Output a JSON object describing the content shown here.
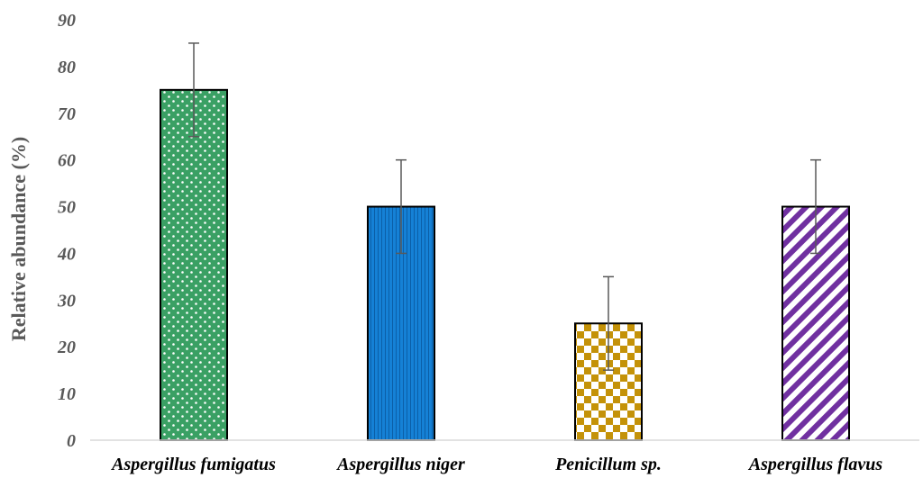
{
  "chart_data": {
    "type": "bar",
    "title": "",
    "xlabel": "",
    "ylabel": "Relative abundance (%)",
    "ylim": [
      0,
      90
    ],
    "yticks": [
      0,
      10,
      20,
      30,
      40,
      50,
      60,
      70,
      80,
      90
    ],
    "grid": false,
    "categories": [
      "Aspergillus fumigatus",
      "Aspergillus niger",
      "Penicillum sp.",
      "Aspergillus flavus"
    ],
    "values": [
      75,
      50,
      25,
      50
    ],
    "error": [
      10,
      10,
      10,
      10
    ],
    "bar_colors": [
      "#3aa064",
      "#1581d6",
      "#c49208",
      "#7030a0"
    ],
    "bar_patterns": [
      "dots",
      "vertical-stripes",
      "checkerboard",
      "diagonal-stripes"
    ]
  }
}
